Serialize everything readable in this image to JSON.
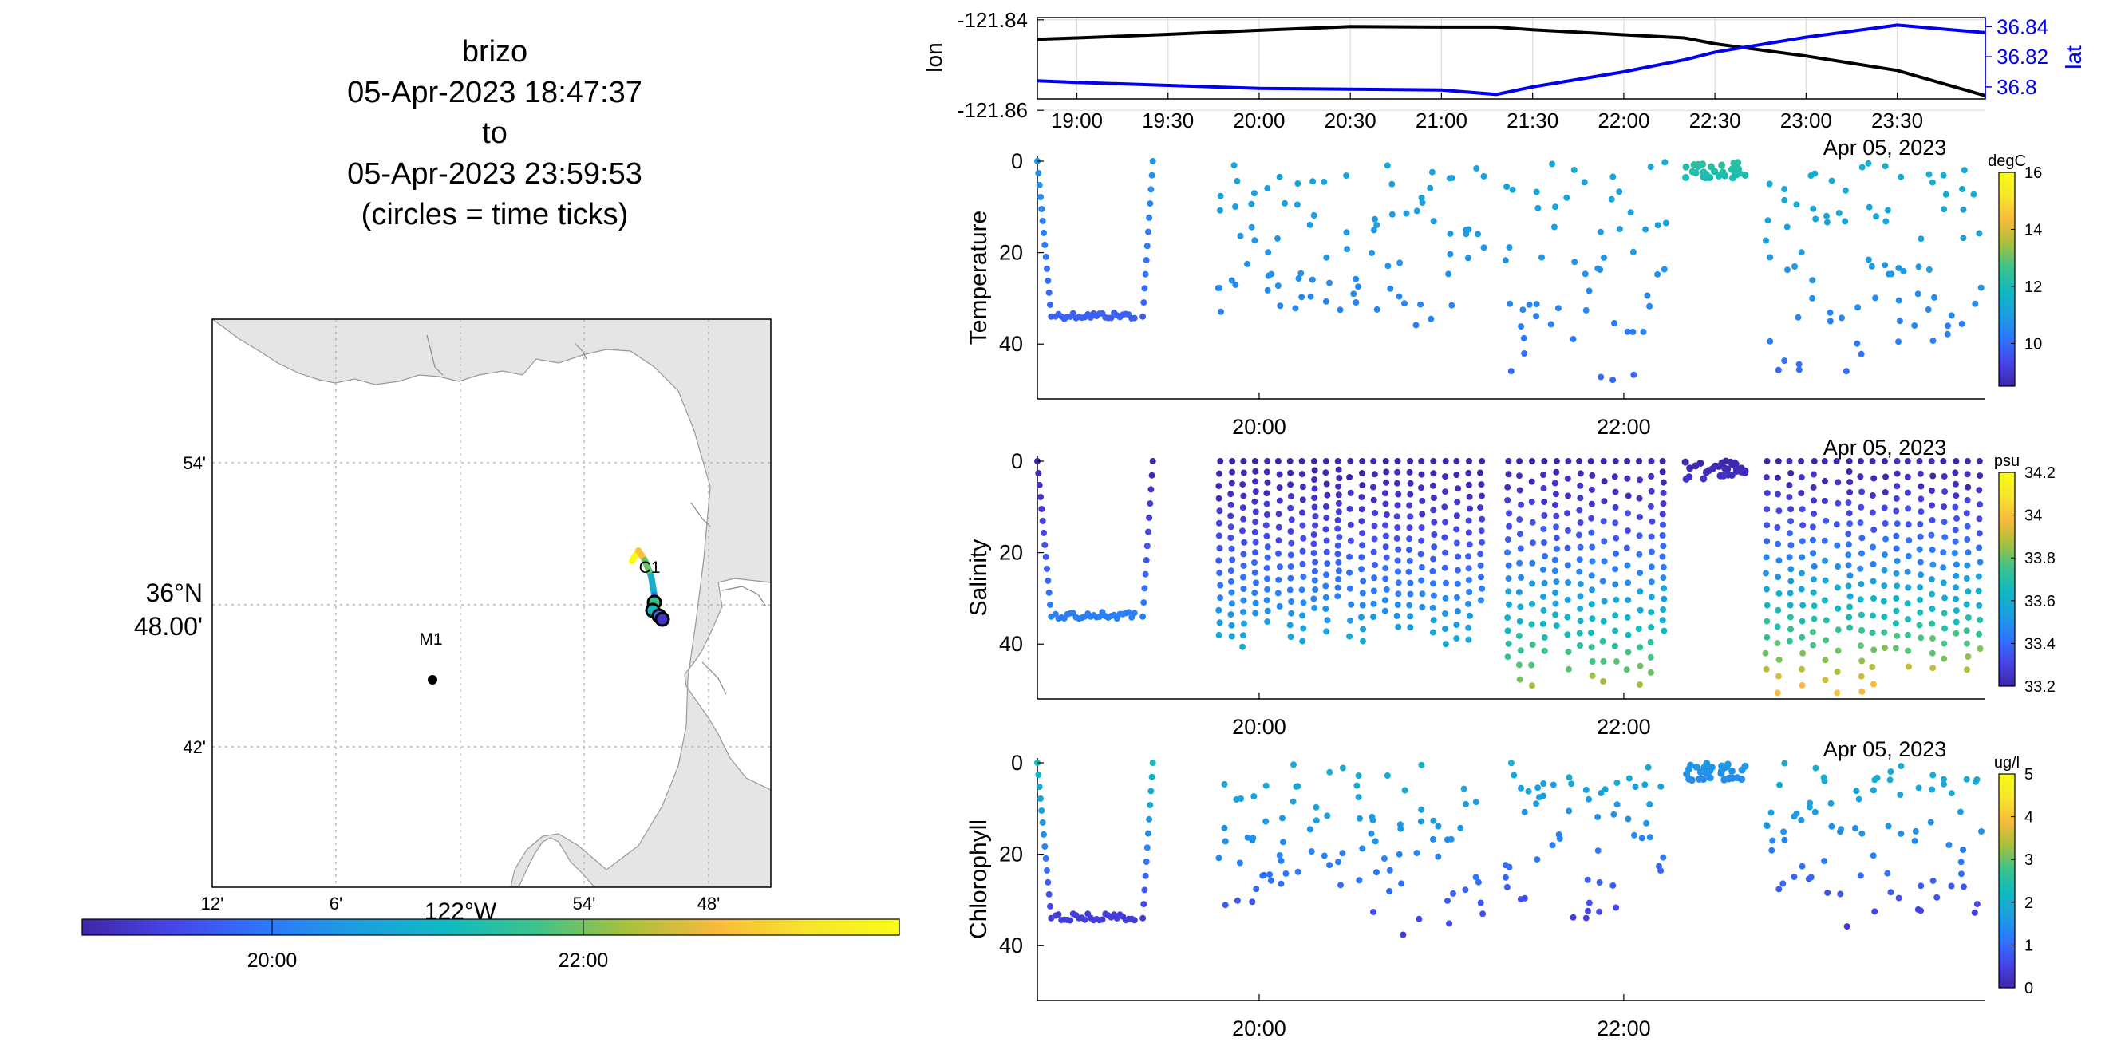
{
  "title": {
    "line1": "brizo",
    "line2": "05-Apr-2023 18:47:37",
    "line3": "to",
    "line4": "05-Apr-2023 23:59:53",
    "line5": "(circles = time ticks)"
  },
  "colors": {
    "lon_line": "#000000",
    "lat_line": "#0000ee",
    "land": "#e5e5e5",
    "colormap": [
      "#3e26a8",
      "#4745e8",
      "#2f75fd",
      "#1c9ee0",
      "#10b9c1",
      "#3dc38b",
      "#a8c03c",
      "#f8ba3d",
      "#f6e62c",
      "#f9fb15"
    ]
  },
  "map": {
    "lat_ticks": [
      "54'",
      "42'"
    ],
    "lat_center_label": [
      "36°N",
      "48.00'"
    ],
    "lon_ticks": [
      "12'",
      "6'",
      "54'",
      "48'"
    ],
    "lon_center_label": "122°W",
    "stations": [
      "M1",
      "C1"
    ],
    "colorbar_ticks": [
      "20:00",
      "22:00"
    ]
  },
  "panels": {
    "position": {
      "ylabel_left": "lon",
      "ylabel_right": "lat",
      "left_ticks": [
        "-121.84",
        "-121.86"
      ],
      "right_ticks": [
        "36.84",
        "36.82",
        "36.8"
      ],
      "x_ticks": [
        "19:00",
        "19:30",
        "20:00",
        "20:30",
        "21:00",
        "21:30",
        "22:00",
        "22:30",
        "23:00",
        "23:30"
      ]
    },
    "temperature": {
      "ylabel": "Temperature",
      "units": "degC",
      "cbar_ticks": [
        "16",
        "14",
        "12",
        "10"
      ]
    },
    "salinity": {
      "ylabel": "Salinity",
      "units": "psu",
      "cbar_ticks": [
        "34.2",
        "34",
        "33.8",
        "33.6",
        "33.4",
        "33.2"
      ]
    },
    "chlorophyll": {
      "ylabel": "Chlorophyll",
      "units": "ug/l",
      "cbar_ticks": [
        "5",
        "4",
        "3",
        "2",
        "1",
        "0"
      ]
    },
    "depth_ticks": [
      "0",
      "20",
      "40"
    ],
    "time_ticks": [
      "20:00",
      "22:00"
    ],
    "date_label": "Apr 05, 2023"
  },
  "chart_data": [
    {
      "type": "line",
      "title": "",
      "xlabel": "",
      "x": [
        "18:47",
        "19:00",
        "19:30",
        "20:00",
        "20:30",
        "21:00",
        "21:18",
        "21:30",
        "22:00",
        "22:20",
        "22:30",
        "23:00",
        "23:30",
        "23:59"
      ],
      "series": [
        {
          "name": "lon",
          "axis": "left",
          "values": [
            -121.8443,
            -121.844,
            -121.8432,
            -121.8423,
            -121.8415,
            -121.8416,
            -121.8416,
            -121.8422,
            -121.8433,
            -121.844,
            -121.8453,
            -121.848,
            -121.8512,
            -121.8568
          ]
        },
        {
          "name": "lat",
          "axis": "right",
          "values": [
            36.804,
            36.803,
            36.801,
            36.799,
            36.7985,
            36.798,
            36.795,
            36.8,
            36.81,
            36.818,
            36.823,
            36.833,
            36.841,
            36.836
          ]
        }
      ],
      "ylim_left": [
        -121.8575,
        -121.8395
      ],
      "ylim_right": [
        36.792,
        36.846
      ],
      "xlim": [
        "18:47",
        "23:59"
      ],
      "grid": true
    },
    {
      "type": "scatter",
      "title": "",
      "ylabel": "Temperature",
      "xlabel": "",
      "colorbar_units": "degC",
      "colorbar_range": [
        8.5,
        16
      ],
      "xlim": [
        "18:47",
        "23:59"
      ],
      "ylim": [
        52,
        0
      ],
      "groups": [
        {
          "t_start": "18:47",
          "t_end": "19:25",
          "depth_max": 34,
          "temp_top": 10.8,
          "temp_bottom": 9.8
        },
        {
          "t_start": "19:45",
          "t_end": "21:15",
          "depth_max": 41,
          "temp_top": 11.2,
          "temp_bottom": 10.2
        },
        {
          "t_start": "21:20",
          "t_end": "22:15",
          "depth_max": 51,
          "temp_top": 11.3,
          "temp_bottom": 9.8
        },
        {
          "t_start": "22:20",
          "t_end": "22:40",
          "depth_max": 4,
          "temp_top": 12.4,
          "temp_bottom": 12.0
        },
        {
          "t_start": "22:45",
          "t_end": "23:59",
          "depth_max": 51,
          "temp_top": 11.5,
          "temp_bottom": 9.8
        }
      ]
    },
    {
      "type": "scatter",
      "title": "",
      "ylabel": "Salinity",
      "xlabel": "",
      "colorbar_units": "psu",
      "colorbar_range": [
        33.2,
        34.2
      ],
      "xlim": [
        "18:47",
        "23:59"
      ],
      "ylim": [
        52,
        0
      ],
      "groups": [
        {
          "t_start": "18:47",
          "t_end": "19:25",
          "depth_max": 34,
          "sal_top": 33.2,
          "sal_bottom": 33.45
        },
        {
          "t_start": "19:45",
          "t_end": "21:15",
          "depth_max": 41,
          "sal_top": 33.2,
          "sal_bottom": 33.6
        },
        {
          "t_start": "21:20",
          "t_end": "22:15",
          "depth_max": 51,
          "sal_top": 33.2,
          "sal_bottom": 33.9
        },
        {
          "t_start": "22:20",
          "t_end": "22:40",
          "depth_max": 4,
          "sal_top": 33.2,
          "sal_bottom": 33.25
        },
        {
          "t_start": "22:45",
          "t_end": "23:59",
          "depth_max": 51,
          "sal_top": 33.2,
          "sal_bottom": 34.0
        }
      ]
    },
    {
      "type": "scatter",
      "title": "",
      "ylabel": "Chlorophyll",
      "xlabel": "",
      "colorbar_units": "ug/l",
      "colorbar_range": [
        0,
        5
      ],
      "xlim": [
        "18:47",
        "23:59"
      ],
      "ylim": [
        52,
        0
      ],
      "groups": [
        {
          "t_start": "18:47",
          "t_end": "19:25",
          "depth_max": 34,
          "chl_top": 2.3,
          "chl_bottom": 0.4
        },
        {
          "t_start": "19:45",
          "t_end": "21:15",
          "depth_max": 40,
          "chl_top": 2.0,
          "chl_bottom": 0.3
        },
        {
          "t_start": "21:20",
          "t_end": "22:15",
          "depth_max": 38,
          "chl_top": 1.9,
          "chl_bottom": 0.2
        },
        {
          "t_start": "22:20",
          "t_end": "22:40",
          "depth_max": 4,
          "chl_top": 1.6,
          "chl_bottom": 1.4
        },
        {
          "t_start": "22:45",
          "t_end": "23:59",
          "depth_max": 38,
          "chl_top": 2.0,
          "chl_bottom": 0.2
        }
      ]
    }
  ]
}
